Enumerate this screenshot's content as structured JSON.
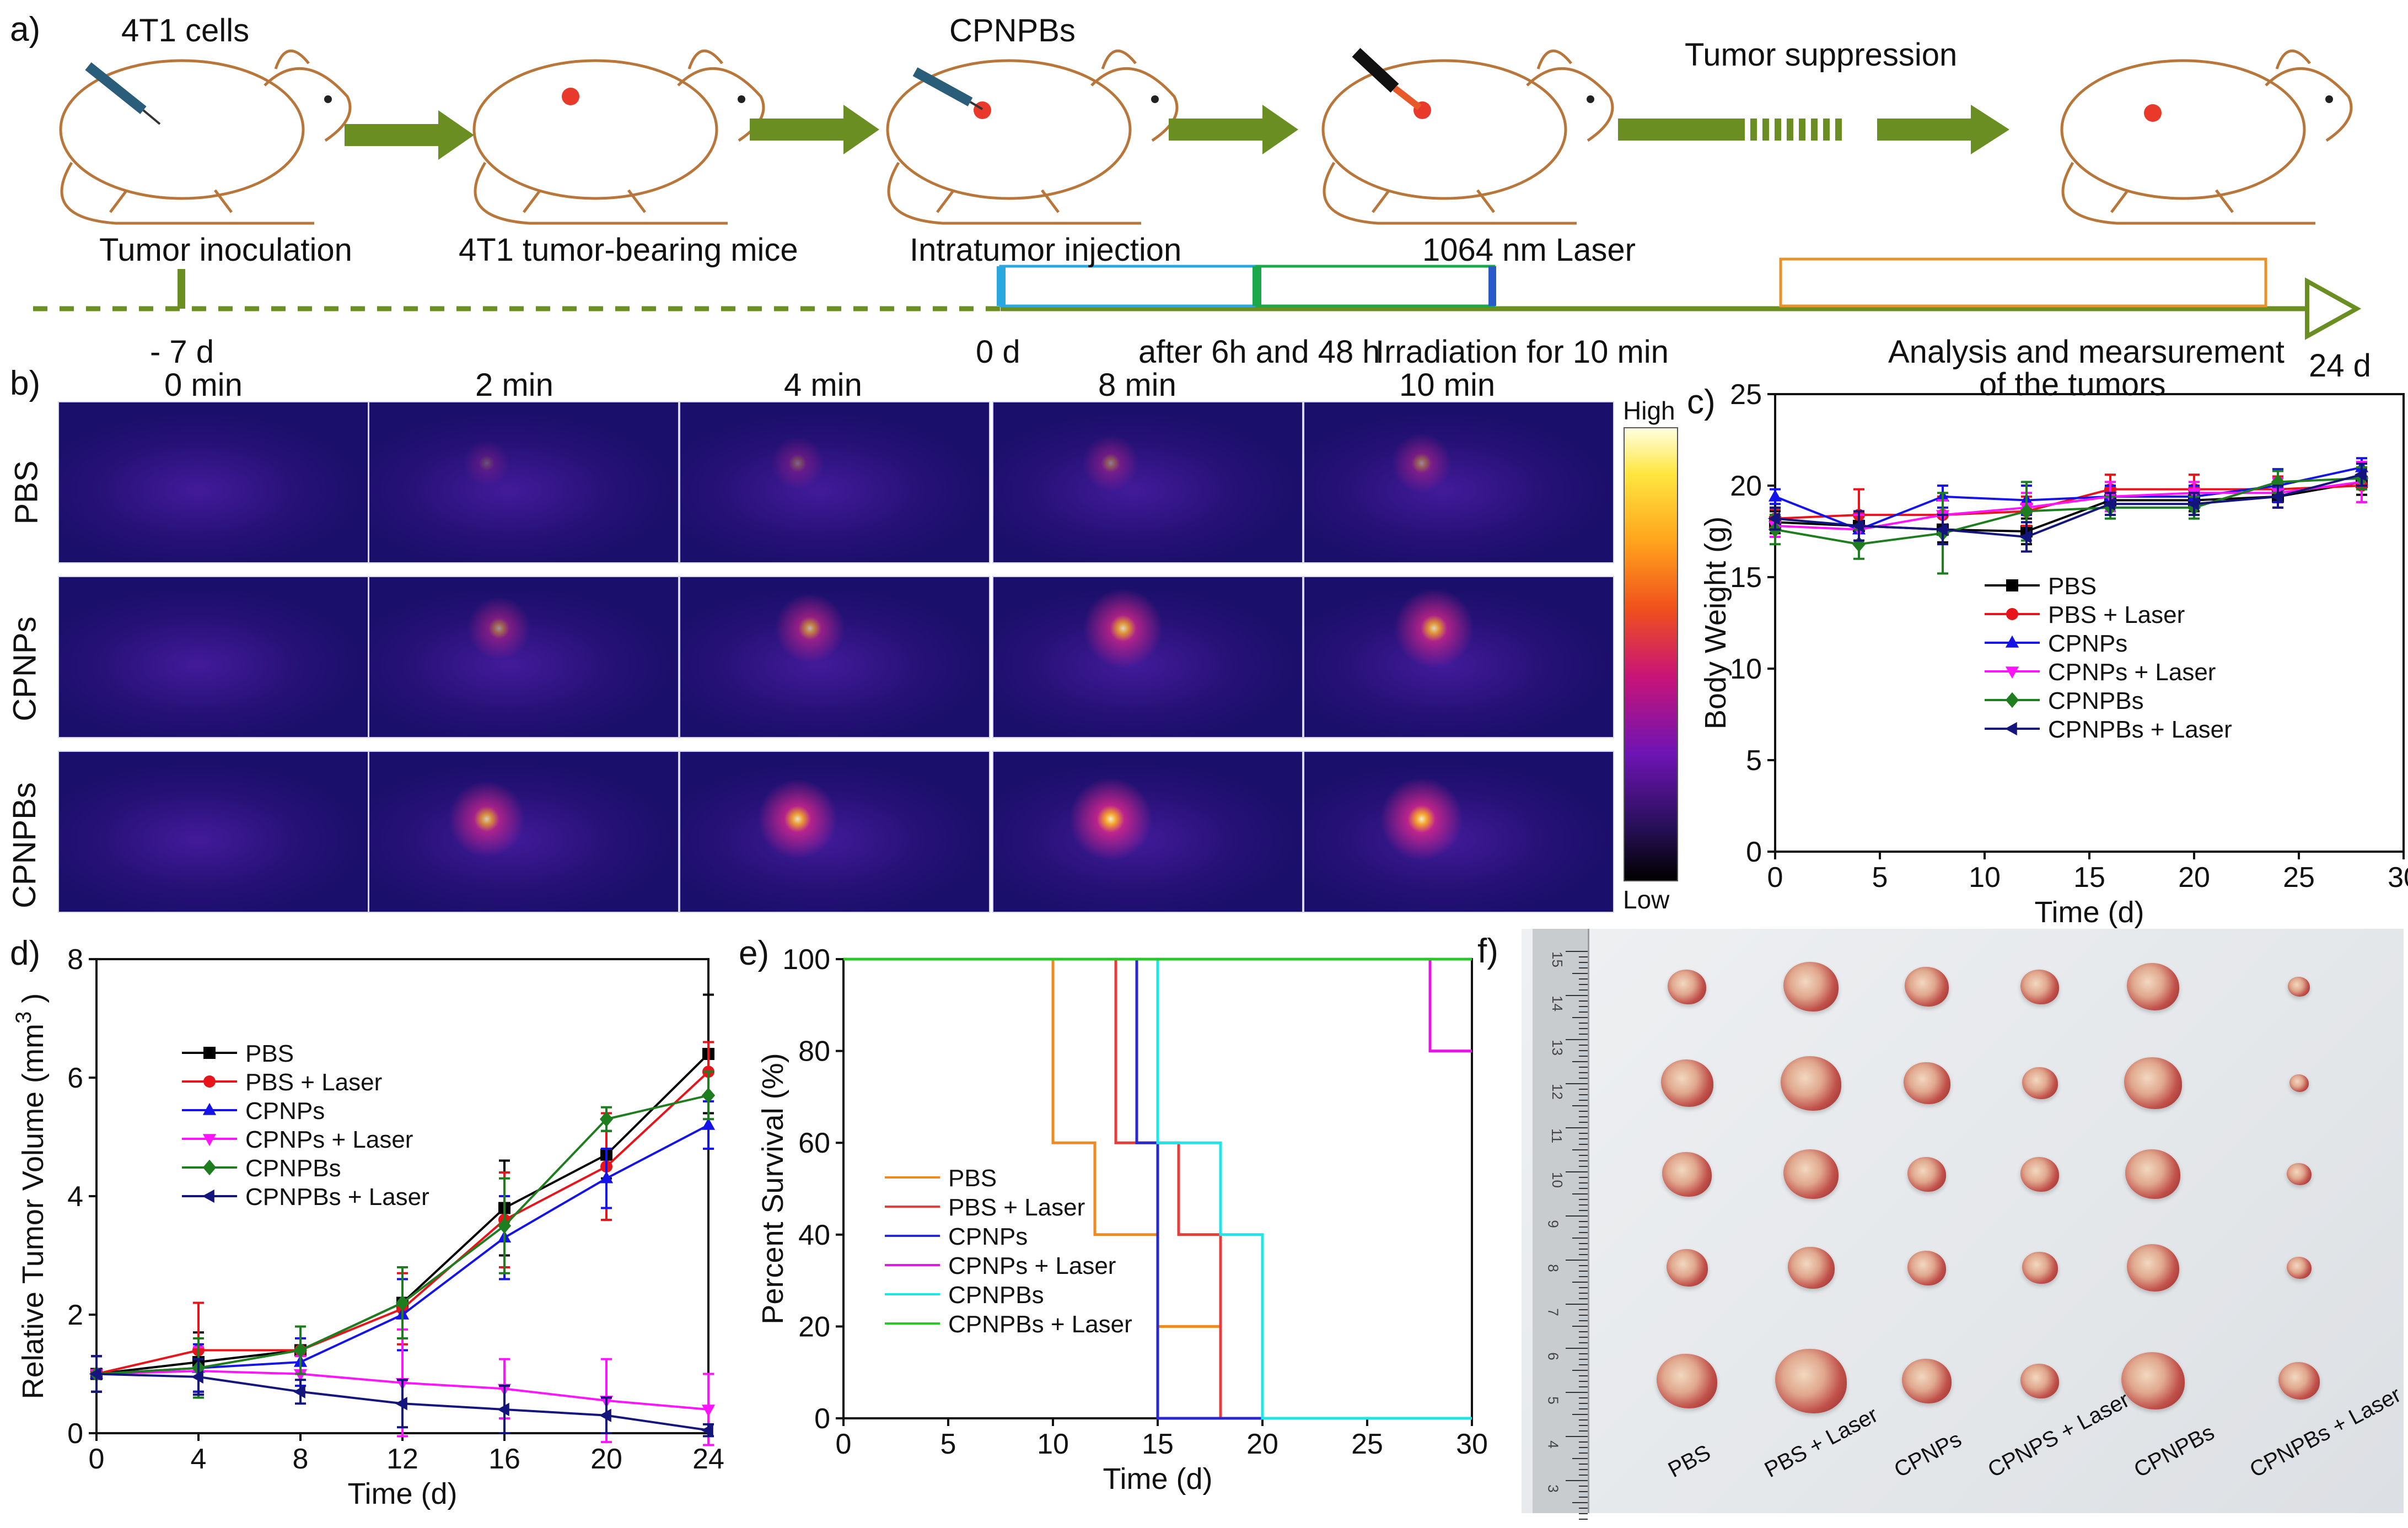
{
  "panel_a": {
    "letter": "a)",
    "top_labels": [
      "4T1 cells",
      "CPNPBs",
      "Tumor suppression"
    ],
    "steps": [
      "Tumor inoculation",
      "4T1 tumor-bearing mice",
      "Intratumor injection",
      "1064 nm Laser"
    ],
    "timepoints": [
      "- 7 d",
      "0 d",
      "after 6h and 48 h",
      "Irradiation for 10 min",
      "24 d"
    ],
    "analysis": [
      "Analysis and mearsurement",
      "of the tumors"
    ],
    "colors": {
      "arrow": "#6b8e23",
      "mouse": "#b8763a",
      "tumor": "#e8392a",
      "cyan_box": "#29a8e0",
      "green_box": "#1aa84a",
      "orange_box": "#e8922a"
    }
  },
  "panel_b": {
    "letter": "b)",
    "times": [
      "0 min",
      "2 min",
      "4 min",
      "8 min",
      "10 min"
    ],
    "rows": [
      "PBS",
      "CPNPs",
      "CPNPBs"
    ],
    "colorbar": {
      "high": "High",
      "low": "Low"
    }
  },
  "panel_f": {
    "letter": "f)",
    "groups": [
      "PBS",
      "PBS + Laser",
      "CPNPs",
      "CPNPS + Laser",
      "CPNPBs",
      "CPNPBs + Laser"
    ],
    "ruler_marks": [
      "15",
      "14",
      "13",
      "12",
      "11",
      "10",
      "9",
      "8",
      "7",
      "6",
      "5",
      "4",
      "3"
    ]
  },
  "chart_data": [
    {
      "id": "c",
      "letter": "c)",
      "type": "line",
      "title": "",
      "xlabel": "Time (d)",
      "ylabel": "Body Weight (g)",
      "xlim": [
        0,
        30
      ],
      "ylim": [
        0,
        25
      ],
      "xticks": [
        0,
        5,
        10,
        15,
        20,
        25,
        30
      ],
      "yticks": [
        0,
        5,
        10,
        15,
        20,
        25
      ],
      "x": [
        0,
        4,
        8,
        12,
        16,
        20,
        24,
        28
      ],
      "series": [
        {
          "name": "PBS",
          "color": "#000000",
          "marker": "square",
          "values": [
            18.0,
            17.8,
            17.6,
            17.5,
            19.2,
            19.2,
            19.4,
            20.2
          ],
          "err": [
            0.6,
            0.8,
            0.7,
            0.7,
            0.6,
            0.6,
            0.6,
            0.7
          ]
        },
        {
          "name": "PBS + Laser",
          "color": "#e8141c",
          "marker": "circle",
          "values": [
            18.2,
            18.4,
            18.4,
            18.6,
            19.8,
            19.8,
            19.8,
            20.0
          ],
          "err": [
            0.5,
            1.4,
            1.0,
            0.8,
            0.8,
            0.8,
            0.7,
            0.9
          ]
        },
        {
          "name": "CPNPs",
          "color": "#1414e8",
          "marker": "triangle-up",
          "values": [
            19.4,
            17.6,
            19.4,
            19.2,
            19.4,
            19.4,
            20.0,
            21.0
          ],
          "err": [
            0.4,
            0.8,
            0.6,
            0.8,
            0.6,
            0.6,
            0.9,
            0.5
          ]
        },
        {
          "name": "CPNPs + Laser",
          "color": "#ff14ff",
          "marker": "triangle-down",
          "values": [
            17.8,
            17.6,
            18.4,
            18.8,
            19.4,
            19.6,
            19.6,
            20.2
          ],
          "err": [
            0.6,
            0.8,
            0.8,
            0.8,
            0.8,
            0.6,
            0.8,
            1.1
          ]
        },
        {
          "name": "CPNPBs",
          "color": "#1e7d1e",
          "marker": "diamond",
          "values": [
            17.6,
            16.8,
            17.4,
            18.6,
            18.8,
            18.8,
            20.2,
            20.4
          ],
          "err": [
            0.8,
            0.8,
            2.2,
            1.6,
            0.6,
            0.6,
            0.6,
            0.6
          ]
        },
        {
          "name": "CPNPBs + Laser",
          "color": "#14147d",
          "marker": "triangle-left",
          "values": [
            18.2,
            17.8,
            17.6,
            17.2,
            19.0,
            19.0,
            19.4,
            20.6
          ],
          "err": [
            0.6,
            0.8,
            0.8,
            0.8,
            0.6,
            0.6,
            0.6,
            0.6
          ]
        }
      ]
    },
    {
      "id": "d",
      "letter": "d)",
      "type": "line",
      "title": "",
      "xlabel": "Time (d)",
      "ylabel": "Relative Tumor Volume (mm",
      "ylabel_sup": "3",
      "ylabel_end": ")",
      "xlim": [
        0,
        24
      ],
      "ylim": [
        0,
        8
      ],
      "xticks": [
        0,
        4,
        8,
        12,
        16,
        20,
        24
      ],
      "yticks": [
        0,
        2,
        4,
        6,
        8
      ],
      "x": [
        0,
        4,
        8,
        12,
        16,
        20,
        24
      ],
      "series": [
        {
          "name": "PBS",
          "color": "#000000",
          "marker": "square",
          "values": [
            1.0,
            1.2,
            1.4,
            2.2,
            3.8,
            4.7,
            6.4
          ],
          "err": [
            0.3,
            0.5,
            0.4,
            0.6,
            0.8,
            0.4,
            1.0
          ]
        },
        {
          "name": "PBS + Laser",
          "color": "#e8141c",
          "marker": "circle",
          "values": [
            1.0,
            1.4,
            1.4,
            2.1,
            3.6,
            4.5,
            6.1
          ],
          "err": [
            0.3,
            0.8,
            0.4,
            0.6,
            0.8,
            0.9,
            0.5
          ]
        },
        {
          "name": "CPNPs",
          "color": "#1414e8",
          "marker": "triangle-up",
          "values": [
            1.0,
            1.1,
            1.2,
            2.0,
            3.3,
            4.3,
            5.2
          ],
          "err": [
            0.3,
            0.4,
            0.4,
            0.6,
            0.7,
            0.5,
            0.4
          ]
        },
        {
          "name": "CPNPs + Laser",
          "color": "#ff14ff",
          "marker": "triangle-down",
          "values": [
            1.0,
            1.05,
            1.0,
            0.85,
            0.75,
            0.55,
            0.4
          ],
          "err": [
            0.3,
            0.4,
            0.3,
            0.9,
            0.5,
            0.7,
            0.6
          ]
        },
        {
          "name": "CPNPBs",
          "color": "#1e7d1e",
          "marker": "diamond",
          "values": [
            1.0,
            1.1,
            1.4,
            2.2,
            3.5,
            5.3,
            5.7
          ],
          "err": [
            0.3,
            0.5,
            0.4,
            0.6,
            0.8,
            0.2,
            0.4
          ]
        },
        {
          "name": "CPNPBs + Laser",
          "color": "#14147d",
          "marker": "triangle-left",
          "values": [
            1.0,
            0.95,
            0.7,
            0.5,
            0.4,
            0.3,
            0.05
          ],
          "err": [
            0.3,
            0.3,
            0.2,
            0.4,
            0.4,
            0.3,
            0.1
          ]
        }
      ]
    },
    {
      "id": "e",
      "letter": "e)",
      "type": "line",
      "step": true,
      "title": "",
      "xlabel": "Time (d)",
      "ylabel": "Percent Survival (%)",
      "xlim": [
        0,
        30
      ],
      "ylim": [
        0,
        100
      ],
      "xticks": [
        0,
        5,
        10,
        15,
        20,
        25,
        30
      ],
      "yticks": [
        0,
        20,
        40,
        60,
        80,
        100
      ],
      "series": [
        {
          "name": "PBS",
          "color": "#f08a1e",
          "x": [
            0,
            10,
            10,
            12,
            12,
            15,
            15,
            18,
            18,
            30
          ],
          "values": [
            100,
            100,
            60,
            60,
            40,
            40,
            20,
            20,
            0,
            0
          ]
        },
        {
          "name": "PBS + Laser",
          "color": "#e83c3c",
          "x": [
            0,
            13,
            13,
            16,
            16,
            18,
            18,
            30
          ],
          "values": [
            100,
            100,
            60,
            60,
            40,
            40,
            0,
            0
          ]
        },
        {
          "name": "CPNPs",
          "color": "#2828d2",
          "x": [
            0,
            14,
            14,
            15,
            15,
            30
          ],
          "values": [
            100,
            100,
            60,
            60,
            0,
            0
          ]
        },
        {
          "name": "CPNPs + Laser",
          "color": "#e614e6",
          "x": [
            0,
            28,
            28,
            30
          ],
          "values": [
            100,
            100,
            80,
            80
          ]
        },
        {
          "name": "CPNPBs",
          "color": "#1ee6e6",
          "x": [
            0,
            15,
            15,
            18,
            18,
            20,
            20,
            30
          ],
          "values": [
            100,
            100,
            60,
            60,
            40,
            40,
            0,
            0
          ]
        },
        {
          "name": "CPNPBs + Laser",
          "color": "#28c828",
          "x": [
            0,
            30
          ],
          "values": [
            100,
            100
          ]
        }
      ]
    }
  ]
}
